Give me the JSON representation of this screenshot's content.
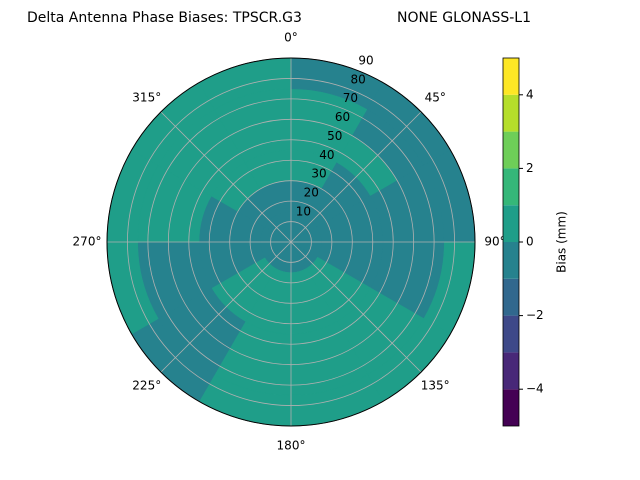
{
  "chart_data": {
    "type": "polar_contour",
    "title": "Delta Antenna Phase Biases: TPSCR.G3",
    "subtitle": "NONE GLONASS-L1",
    "colorbar_label": "Bias (mm)",
    "azimuth_edges": [
      0,
      30,
      60,
      90,
      120,
      150,
      180,
      210,
      240,
      270,
      300,
      330,
      360
    ],
    "radius_edges": [
      0,
      15,
      30,
      45,
      60,
      75,
      90
    ],
    "z": [
      [
        -0.5,
        -0.3,
        0.4,
        0.5,
        0.3,
        -0.4
      ],
      [
        -0.5,
        -0.5,
        -0.3,
        0.3,
        -0.3,
        -0.5
      ],
      [
        -0.5,
        -0.5,
        -0.5,
        -0.6,
        -0.5,
        -0.4
      ],
      [
        -0.4,
        -0.5,
        -0.5,
        -0.5,
        -0.3,
        0.3
      ],
      [
        -0.3,
        0.3,
        0.4,
        0.5,
        0.5,
        0.4
      ],
      [
        -0.2,
        0.4,
        0.5,
        0.6,
        0.5,
        0.4
      ],
      [
        -0.2,
        0.3,
        0.5,
        0.5,
        0.4,
        0.3
      ],
      [
        -0.3,
        0.3,
        0.3,
        -0.3,
        -0.4,
        -0.5
      ],
      [
        -0.4,
        -0.5,
        -0.5,
        -0.4,
        -0.3,
        0.3
      ],
      [
        -0.4,
        -0.5,
        -0.4,
        0.3,
        0.5,
        0.4
      ],
      [
        -0.4,
        -0.3,
        0.4,
        0.5,
        0.5,
        0.3
      ],
      [
        -0.4,
        -0.3,
        0.4,
        0.5,
        0.4,
        0.2
      ]
    ],
    "levels": [
      -5,
      -4,
      -3,
      -2,
      -1,
      0,
      1,
      2,
      3,
      4,
      5
    ],
    "level_colors": [
      "#440154",
      "#482878",
      "#3e4989",
      "#31688e",
      "#26828e",
      "#1f9e89",
      "#35b779",
      "#6ece58",
      "#b5de2b",
      "#fde725"
    ],
    "clim": [
      -5,
      5
    ],
    "cticks": [
      {
        "value": -4,
        "label": "−4"
      },
      {
        "value": -2,
        "label": "−2"
      },
      0,
      2,
      4
    ],
    "rlim": [
      0,
      90
    ],
    "rticks": [
      10,
      20,
      30,
      40,
      50,
      60,
      70,
      80,
      90
    ],
    "thetaticks": [
      {
        "value": 0,
        "label": "0°"
      },
      {
        "value": 45,
        "label": "45°"
      },
      {
        "value": 90,
        "label": "90°"
      },
      {
        "value": 135,
        "label": "135°"
      },
      {
        "value": 180,
        "label": "180°"
      },
      {
        "value": 225,
        "label": "225°"
      },
      {
        "value": 270,
        "label": "270°"
      },
      {
        "value": 315,
        "label": "315°"
      }
    ],
    "theta_direction": "clockwise",
    "theta_zero": "top",
    "grid": true
  }
}
